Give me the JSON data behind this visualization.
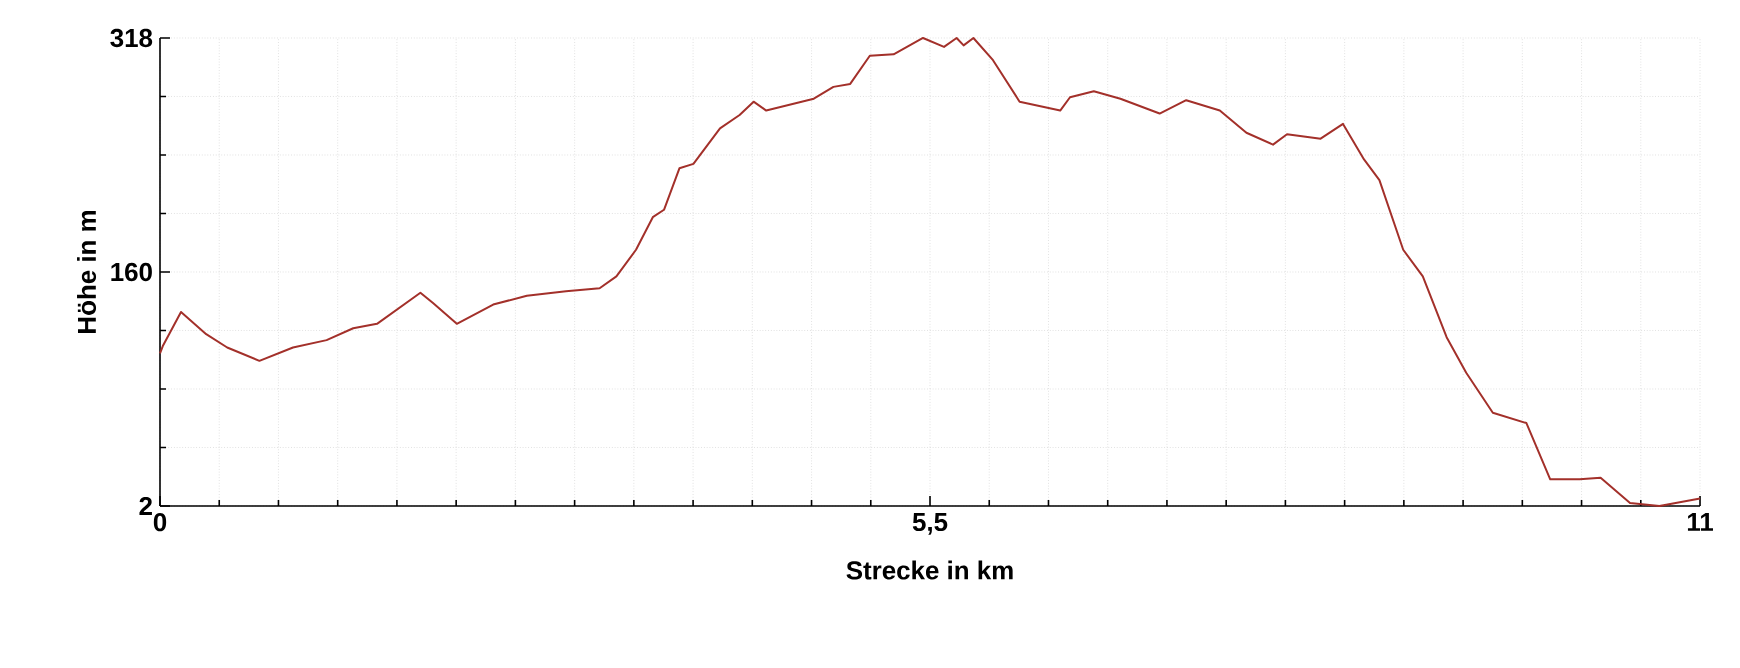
{
  "chart_data": {
    "type": "line",
    "xlabel": "Strecke in km",
    "ylabel": "Höhe in m",
    "xlim": [
      0,
      11
    ],
    "ylim": [
      2,
      318
    ],
    "xticks": [
      0,
      {
        "value": 5.5,
        "label": "5,5"
      },
      11
    ],
    "yticks": [
      2,
      160,
      318
    ],
    "grid": true,
    "marker": "none",
    "line_style": "solid",
    "series": [
      {
        "color": "#a3302a",
        "x": [
          0,
          0.02,
          0.15,
          0.33,
          0.48,
          0.71,
          0.95,
          1.19,
          1.38,
          1.55,
          1.86,
          1.95,
          2.12,
          2.38,
          2.62,
          2.9,
          3.14,
          3.26,
          3.4,
          3.52,
          3.6,
          3.71,
          3.81,
          4.0,
          4.14,
          4.24,
          4.33,
          4.67,
          4.81,
          4.93,
          5.07,
          5.24,
          5.45,
          5.6,
          5.69,
          5.74,
          5.81,
          5.95,
          6.14,
          6.43,
          6.5,
          6.67,
          6.86,
          7.14,
          7.33,
          7.57,
          7.76,
          7.95,
          8.05,
          8.29,
          8.45,
          8.6,
          8.71,
          8.88,
          9.02,
          9.19,
          9.33,
          9.52,
          9.76,
          9.93,
          10.14,
          10.29,
          10.5,
          10.71,
          11
        ],
        "values": [
          105,
          110,
          133,
          118,
          109,
          100,
          109,
          114,
          122,
          125,
          146,
          139,
          125,
          138,
          144,
          147,
          149,
          157,
          175,
          197,
          202,
          230,
          233,
          257,
          266,
          275,
          269,
          277,
          285,
          287,
          306,
          307,
          318,
          312,
          318,
          313,
          318,
          303,
          275,
          269,
          278,
          282,
          277,
          267,
          276,
          269,
          254,
          246,
          253,
          250,
          260,
          236,
          222,
          175,
          157,
          116,
          92,
          65,
          58,
          20,
          20,
          21,
          4,
          2,
          7
        ]
      }
    ]
  }
}
